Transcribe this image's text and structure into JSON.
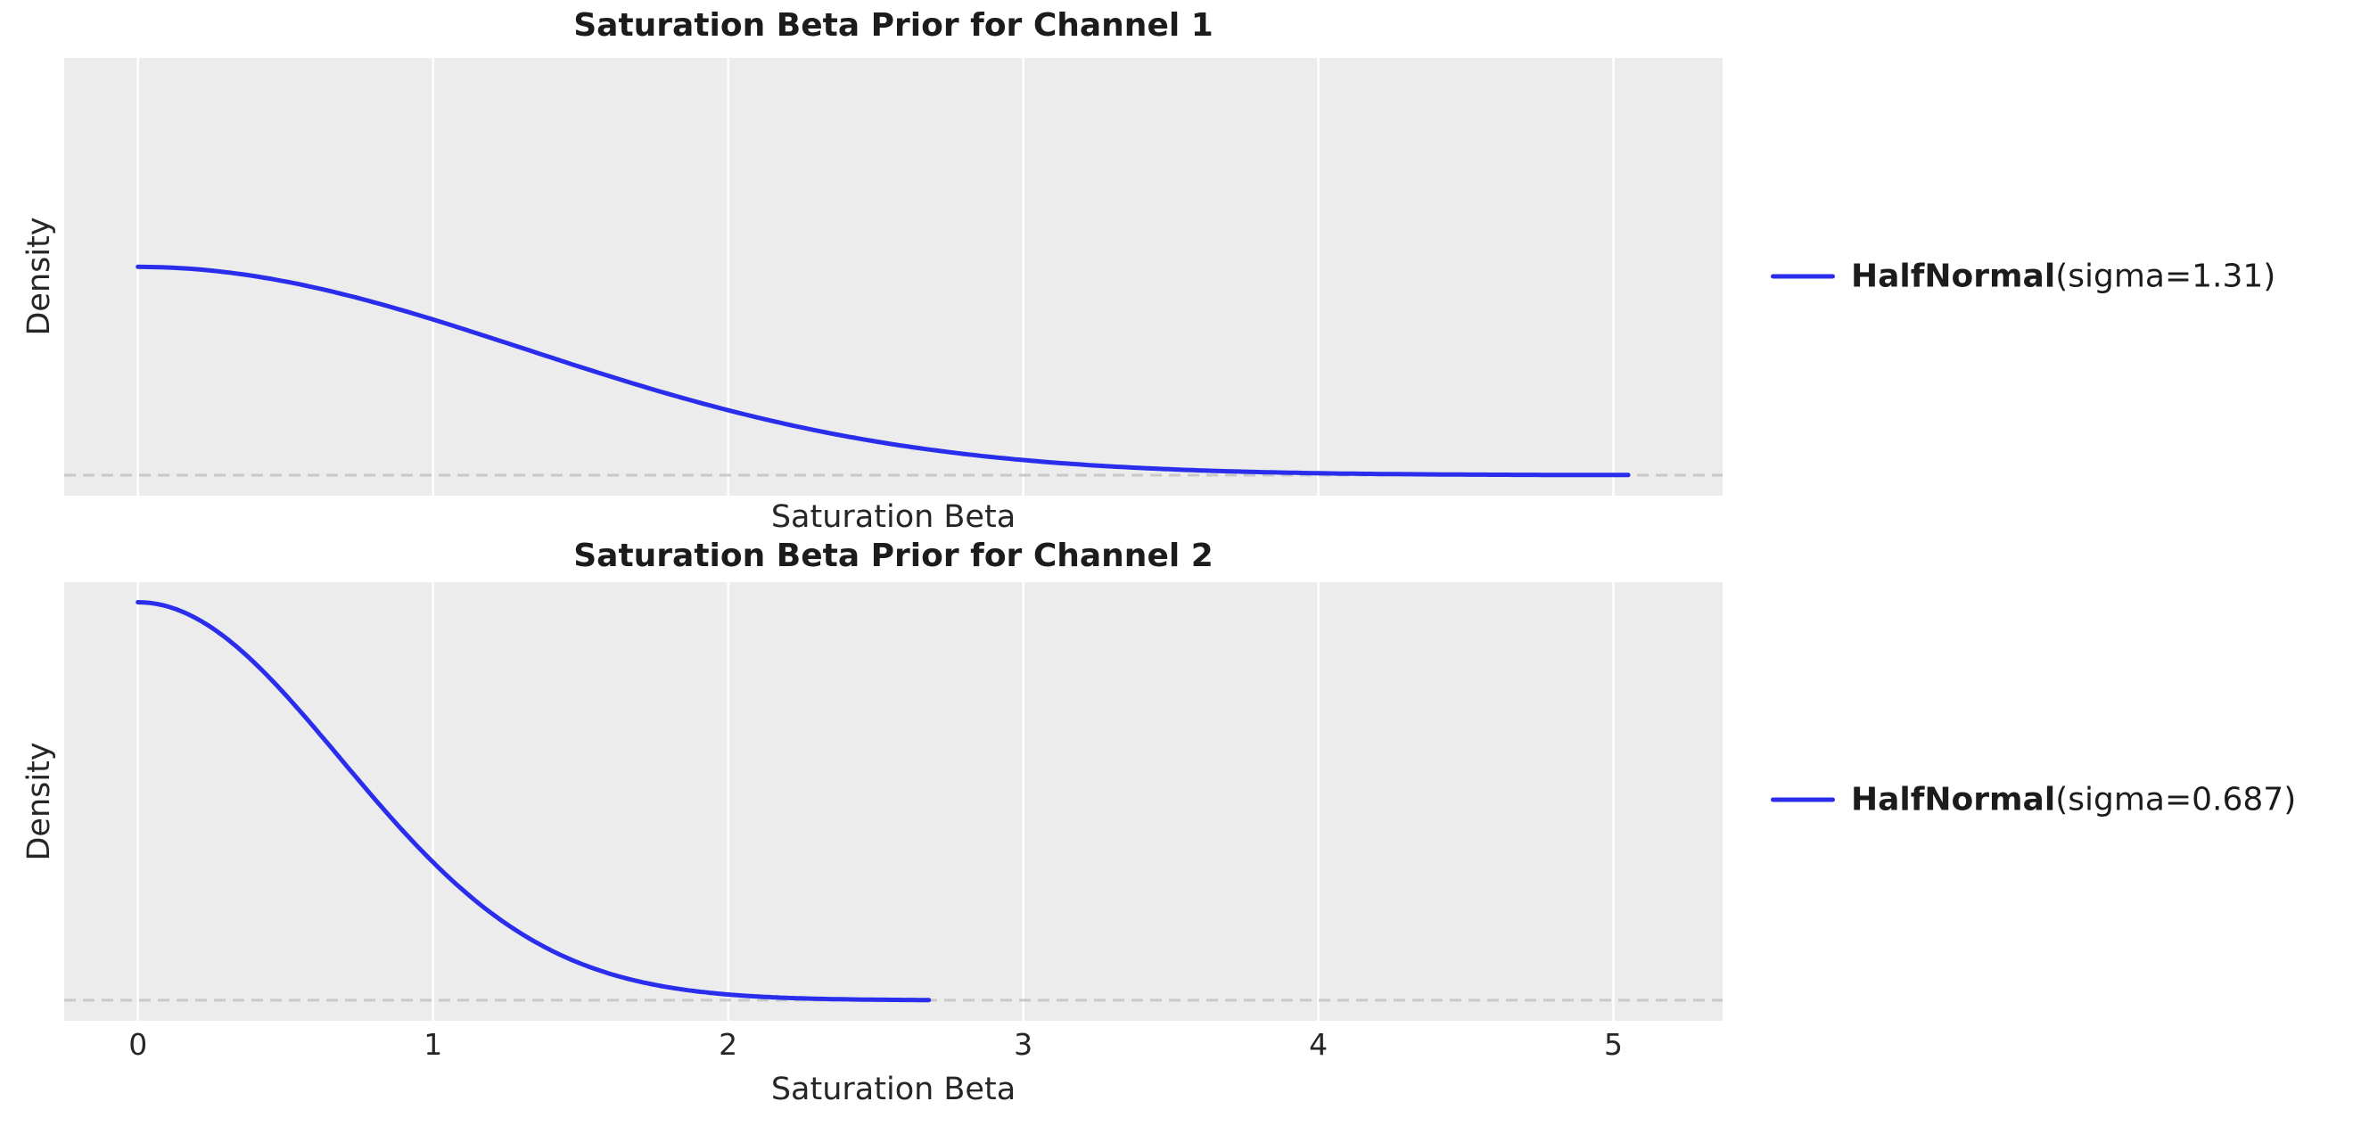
{
  "figure": {
    "background": "#ffffff",
    "plot_bg": "#ececec",
    "grid_color": "#ffffff",
    "baseline_color": "#c9c9c9",
    "accent_blue": "#2a2eec",
    "text_color": "#262626"
  },
  "chart_data": [
    {
      "type": "line",
      "title": "Saturation Beta Prior for Channel 1",
      "xlabel": "Saturation Beta",
      "ylabel": "Density",
      "x_ticks": [
        0,
        1,
        2,
        3,
        4,
        5
      ],
      "show_x_tick_labels": false,
      "xlim": [
        -0.25,
        5.37
      ],
      "ylim": [
        -0.06,
        1.22
      ],
      "grid": "vertical-only",
      "legend_position": "center-right-outside",
      "baseline_y": 0,
      "series": [
        {
          "name": "HalfNormal(sigma=1.31)",
          "distribution": "HalfNormal",
          "sigma": 1.31,
          "pdf_at_0": 0.609,
          "x_start": 0,
          "x_end": 5.05,
          "color": "#2a2eec"
        }
      ],
      "legend": {
        "name_bold": "HalfNormal",
        "params": "(sigma=1.31)"
      }
    },
    {
      "type": "line",
      "title": "Saturation Beta Prior for Channel 2",
      "xlabel": "Saturation Beta",
      "ylabel": "Density",
      "x_ticks": [
        0,
        1,
        2,
        3,
        4,
        5
      ],
      "show_x_tick_labels": true,
      "xlim": [
        -0.25,
        5.37
      ],
      "ylim": [
        -0.06,
        1.22
      ],
      "grid": "vertical-only",
      "legend_position": "center-right-outside",
      "baseline_y": 0,
      "series": [
        {
          "name": "HalfNormal(sigma=0.687)",
          "distribution": "HalfNormal",
          "sigma": 0.687,
          "pdf_at_0": 1.161,
          "x_start": 0,
          "x_end": 2.68,
          "color": "#2a2eec"
        }
      ],
      "legend": {
        "name_bold": "HalfNormal",
        "params": "(sigma=0.687)"
      }
    }
  ]
}
